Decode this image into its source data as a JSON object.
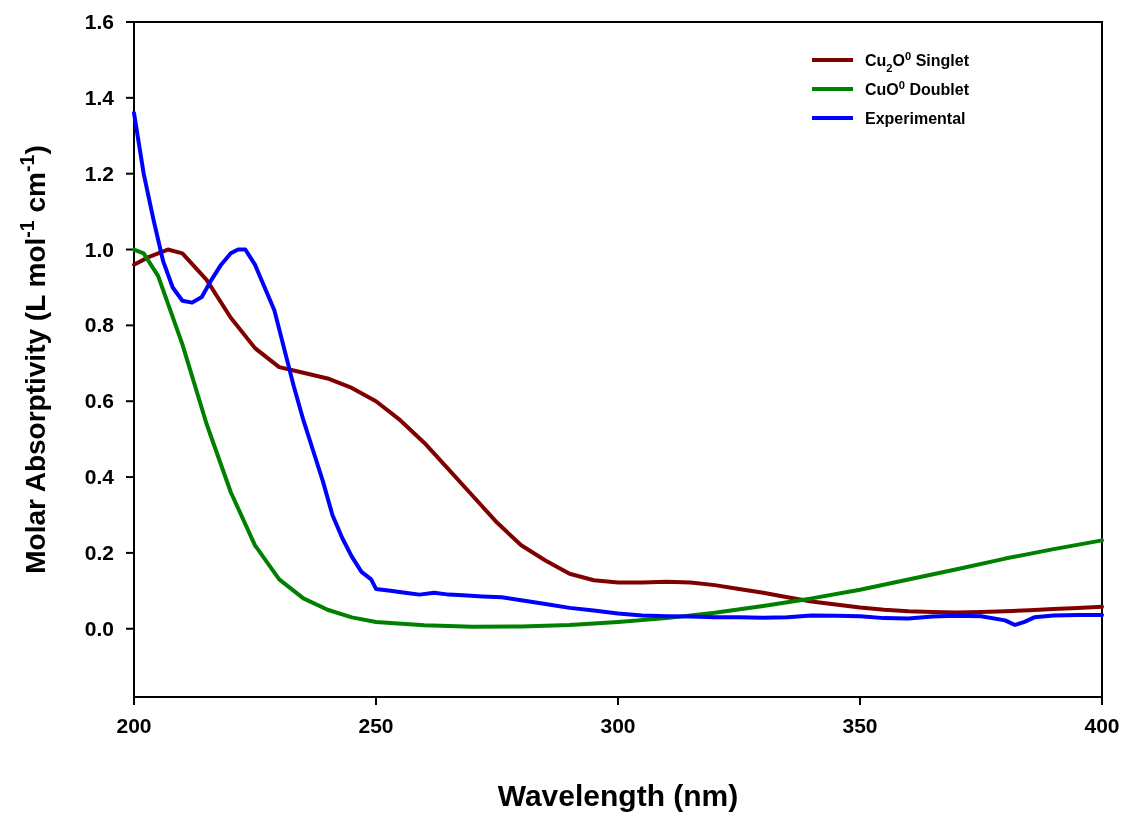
{
  "chart_data": {
    "type": "line",
    "xlabel": "Wavelength (nm)",
    "ylabel": "Molar Absorptivity (L mol$^{-1}$ cm$^{-1}$)",
    "xlim": [
      200,
      400
    ],
    "ylim": [
      -0.18,
      1.6
    ],
    "xticks": [
      200,
      250,
      300,
      350,
      400
    ],
    "yticks": [
      {
        "value": 0,
        "label": "0.0"
      },
      {
        "value": 0.2,
        "label": "0.2"
      },
      {
        "value": 0.4,
        "label": "0.4"
      },
      {
        "value": 0.6,
        "label": "0.6"
      },
      {
        "value": 0.8,
        "label": "0.8"
      },
      {
        "value": 1,
        "label": "1.0"
      },
      {
        "value": 1.2,
        "label": "1.2"
      },
      {
        "value": 1.4,
        "label": "1.4"
      },
      {
        "value": 1.6,
        "label": "1.6"
      }
    ],
    "grid": false,
    "legend": "top right",
    "marker": "none",
    "line_style": "solid",
    "series": [
      {
        "name": "Cu$_{2}$O$^{0}$ Singlet",
        "color": "#800000",
        "x": [
          200,
          203,
          207,
          210,
          215,
          220,
          225,
          230,
          235,
          240,
          245,
          250,
          255,
          260,
          265,
          270,
          275,
          280,
          285,
          290,
          295,
          300,
          305,
          310,
          315,
          320,
          325,
          330,
          335,
          340,
          345,
          350,
          355,
          360,
          365,
          370,
          375,
          380,
          385,
          390,
          395,
          400
        ],
        "values": [
          0.96,
          0.98,
          1.0,
          0.99,
          0.92,
          0.82,
          0.74,
          0.69,
          0.675,
          0.66,
          0.635,
          0.6,
          0.55,
          0.49,
          0.42,
          0.35,
          0.28,
          0.22,
          0.18,
          0.145,
          0.128,
          0.122,
          0.122,
          0.124,
          0.122,
          0.115,
          0.105,
          0.095,
          0.083,
          0.072,
          0.064,
          0.056,
          0.05,
          0.046,
          0.044,
          0.043,
          0.044,
          0.046,
          0.049,
          0.052,
          0.055,
          0.058
        ]
      },
      {
        "name": "CuO$^{0}$ Doublet",
        "color": "#008000",
        "x": [
          200,
          202,
          205,
          210,
          215,
          220,
          225,
          230,
          235,
          240,
          245,
          250,
          260,
          270,
          280,
          290,
          300,
          310,
          320,
          330,
          340,
          350,
          360,
          370,
          380,
          390,
          400
        ],
        "values": [
          1.0,
          0.99,
          0.93,
          0.75,
          0.54,
          0.36,
          0.22,
          0.13,
          0.08,
          0.05,
          0.03,
          0.018,
          0.009,
          0.005,
          0.006,
          0.01,
          0.018,
          0.028,
          0.042,
          0.06,
          0.08,
          0.103,
          0.13,
          0.157,
          0.185,
          0.21,
          0.233
        ]
      },
      {
        "name": "Experimental",
        "color": "#0000ff",
        "x": [
          200,
          202,
          204,
          206,
          208,
          210,
          212,
          214,
          216,
          218,
          220,
          221.5,
          223,
          225,
          227,
          229,
          231,
          233,
          235,
          237,
          239,
          241,
          243,
          245,
          247,
          249,
          250,
          253,
          256,
          259,
          262,
          265,
          268,
          272,
          276,
          280,
          285,
          290,
          295,
          300,
          305,
          310,
          315,
          320,
          325,
          330,
          335,
          340,
          345,
          350,
          355,
          360,
          365,
          370,
          375,
          380,
          382,
          384,
          386,
          390,
          395,
          400
        ],
        "values": [
          1.36,
          1.2,
          1.08,
          0.97,
          0.9,
          0.865,
          0.86,
          0.875,
          0.92,
          0.96,
          0.99,
          1.0,
          1.0,
          0.96,
          0.9,
          0.84,
          0.74,
          0.64,
          0.55,
          0.47,
          0.39,
          0.3,
          0.24,
          0.19,
          0.15,
          0.13,
          0.105,
          0.1,
          0.095,
          0.09,
          0.095,
          0.09,
          0.088,
          0.085,
          0.083,
          0.075,
          0.065,
          0.055,
          0.048,
          0.04,
          0.035,
          0.033,
          0.032,
          0.03,
          0.03,
          0.029,
          0.03,
          0.035,
          0.034,
          0.033,
          0.028,
          0.027,
          0.032,
          0.034,
          0.033,
          0.022,
          0.01,
          0.018,
          0.03,
          0.035,
          0.036,
          0.036
        ]
      }
    ]
  }
}
